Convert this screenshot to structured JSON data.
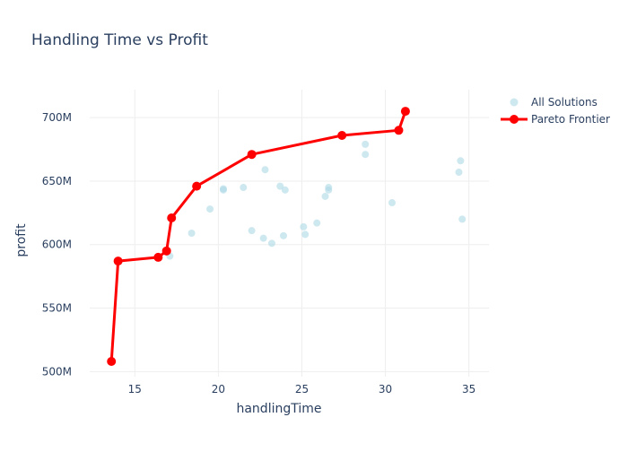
{
  "chart_data": {
    "type": "scatter",
    "title": "Handling Time vs Profit",
    "xlabel": "handlingTime",
    "ylabel": "profit",
    "xlim": [
      12.3,
      36.2
    ],
    "ylim": [
      496,
      722
    ],
    "x_ticks": [
      15,
      20,
      25,
      30,
      35
    ],
    "y_ticks": [
      500,
      550,
      600,
      650,
      700
    ],
    "y_tick_labels": [
      "500M",
      "550M",
      "600M",
      "650M",
      "700M"
    ],
    "grid": true,
    "legend_position": "top-right",
    "series": [
      {
        "name": "All Solutions",
        "mode": "markers",
        "color": "#add8e6",
        "points": [
          {
            "x": 13.6,
            "y": 508
          },
          {
            "x": 14.0,
            "y": 587
          },
          {
            "x": 16.4,
            "y": 590
          },
          {
            "x": 16.9,
            "y": 595
          },
          {
            "x": 17.1,
            "y": 591
          },
          {
            "x": 17.2,
            "y": 621
          },
          {
            "x": 18.4,
            "y": 609
          },
          {
            "x": 18.7,
            "y": 646
          },
          {
            "x": 19.5,
            "y": 628
          },
          {
            "x": 20.3,
            "y": 643
          },
          {
            "x": 20.3,
            "y": 644
          },
          {
            "x": 21.5,
            "y": 645
          },
          {
            "x": 22.0,
            "y": 611
          },
          {
            "x": 22.0,
            "y": 671
          },
          {
            "x": 22.7,
            "y": 605
          },
          {
            "x": 22.8,
            "y": 659
          },
          {
            "x": 23.2,
            "y": 601
          },
          {
            "x": 23.7,
            "y": 646
          },
          {
            "x": 23.9,
            "y": 607
          },
          {
            "x": 24.0,
            "y": 643
          },
          {
            "x": 25.1,
            "y": 614
          },
          {
            "x": 25.2,
            "y": 608
          },
          {
            "x": 25.9,
            "y": 617
          },
          {
            "x": 26.4,
            "y": 638
          },
          {
            "x": 26.6,
            "y": 645
          },
          {
            "x": 26.6,
            "y": 643
          },
          {
            "x": 27.4,
            "y": 686
          },
          {
            "x": 28.8,
            "y": 679
          },
          {
            "x": 28.8,
            "y": 671
          },
          {
            "x": 30.4,
            "y": 633
          },
          {
            "x": 30.8,
            "y": 690
          },
          {
            "x": 31.2,
            "y": 705
          },
          {
            "x": 34.4,
            "y": 657
          },
          {
            "x": 34.5,
            "y": 666
          },
          {
            "x": 34.6,
            "y": 620
          }
        ]
      },
      {
        "name": "Pareto Frontier",
        "mode": "lines+markers",
        "color": "#ff0000",
        "points": [
          {
            "x": 13.6,
            "y": 508
          },
          {
            "x": 14.0,
            "y": 587
          },
          {
            "x": 16.4,
            "y": 590
          },
          {
            "x": 16.9,
            "y": 595
          },
          {
            "x": 17.2,
            "y": 621
          },
          {
            "x": 18.7,
            "y": 646
          },
          {
            "x": 22.0,
            "y": 671
          },
          {
            "x": 27.4,
            "y": 686
          },
          {
            "x": 30.8,
            "y": 690
          },
          {
            "x": 31.2,
            "y": 705
          }
        ]
      }
    ]
  }
}
